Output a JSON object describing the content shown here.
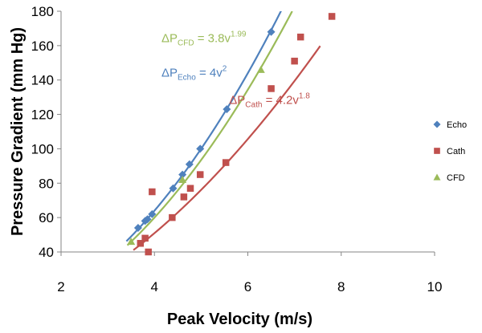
{
  "chart_data": {
    "type": "scatter",
    "xlabel": "Peak Velocity (m/s)",
    "ylabel": "Pressure Gradient (mm Hg)",
    "xlim": [
      2,
      10
    ],
    "ylim": [
      40,
      180
    ],
    "xticks": [
      2,
      4,
      6,
      8,
      10
    ],
    "yticks": [
      40,
      60,
      80,
      100,
      120,
      140,
      160,
      180
    ],
    "grid": false,
    "legend_position": "right",
    "series": [
      {
        "name": "Echo",
        "marker": "diamond",
        "color": "#4F81BD",
        "points": [
          [
            3.65,
            54
          ],
          [
            3.8,
            58
          ],
          [
            3.85,
            59
          ],
          [
            3.95,
            62
          ],
          [
            4.4,
            77
          ],
          [
            4.6,
            85
          ],
          [
            4.75,
            91
          ],
          [
            4.98,
            100
          ],
          [
            5.55,
            123
          ],
          [
            6.5,
            168
          ]
        ],
        "fit": {
          "a": 4,
          "b": 2,
          "x_from": 3.4,
          "x_to": 6.72,
          "label_base": "ΔP",
          "label_sub": "Echo",
          "label_mid": " = 4v",
          "label_sup": "2"
        }
      },
      {
        "name": "Cath",
        "marker": "square",
        "color": "#C0504D",
        "points": [
          [
            3.7,
            45
          ],
          [
            3.8,
            48
          ],
          [
            3.87,
            40
          ],
          [
            3.95,
            75
          ],
          [
            4.38,
            60
          ],
          [
            4.63,
            72
          ],
          [
            4.77,
            77
          ],
          [
            4.98,
            85
          ],
          [
            5.53,
            92
          ],
          [
            6.5,
            135
          ],
          [
            7.0,
            151
          ],
          [
            7.13,
            165
          ],
          [
            7.8,
            177
          ]
        ],
        "fit": {
          "a": 4.2,
          "b": 1.8,
          "x_from": 3.55,
          "x_to": 7.55,
          "label_base": "ΔP",
          "label_sub": "Cath",
          "label_mid": " = 4.2v",
          "label_sup": "1.8"
        }
      },
      {
        "name": "CFD",
        "marker": "triangle",
        "color": "#9BBB59",
        "points": [
          [
            3.5,
            46
          ],
          [
            4.6,
            82
          ],
          [
            6.28,
            146
          ]
        ],
        "fit": {
          "a": 3.8,
          "b": 1.99,
          "x_from": 3.42,
          "x_to": 6.95,
          "label_base": "ΔP",
          "label_sub": "CFD",
          "label_mid": " = 3.8v",
          "label_sup": "1.99"
        }
      }
    ]
  }
}
